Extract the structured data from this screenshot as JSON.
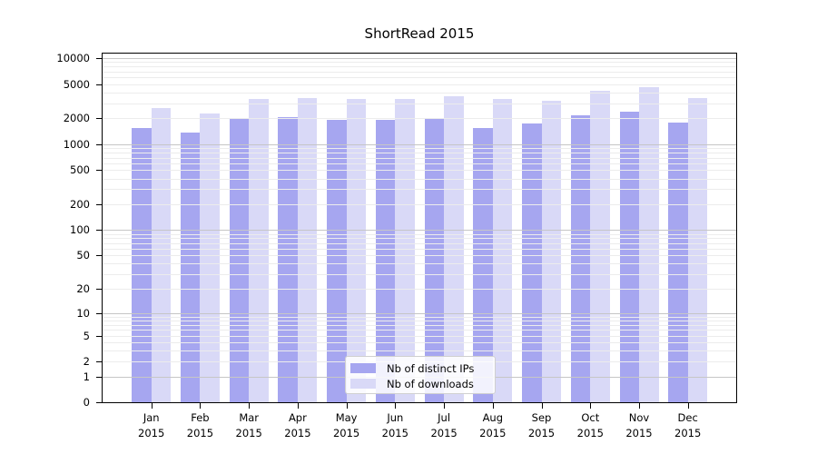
{
  "title": "ShortRead 2015",
  "chart_data": {
    "type": "bar",
    "title": "ShortRead 2015",
    "categories": [
      "Jan 2015",
      "Feb 2015",
      "Mar 2015",
      "Apr 2015",
      "May 2015",
      "Jun 2015",
      "Jul 2015",
      "Aug 2015",
      "Sep 2015",
      "Oct 2015",
      "Nov 2015",
      "Dec 2015"
    ],
    "series": [
      {
        "name": "Nb of distinct IPs",
        "color": "#a6a6f0",
        "values": [
          1560,
          1380,
          2040,
          2060,
          1920,
          1900,
          1970,
          1550,
          1740,
          2190,
          2370,
          1790
        ]
      },
      {
        "name": "Nb of downloads",
        "color": "#d9d9f7",
        "values": [
          2630,
          2260,
          3340,
          3420,
          3390,
          3370,
          3610,
          3390,
          3230,
          4210,
          4600,
          3470
        ]
      }
    ],
    "yscale": "log10(1+y)",
    "ylim": [
      0,
      10000
    ],
    "y_ticks": [
      0,
      1,
      2,
      5,
      10,
      20,
      50,
      100,
      200,
      500,
      1000,
      2000,
      5000,
      10000
    ],
    "y_tick_labels": [
      "0",
      "1",
      "2",
      "5",
      "10",
      "20",
      "50",
      "100",
      "200",
      "500",
      "1000",
      "2000",
      "5000",
      "10000"
    ],
    "grid": true,
    "legend_position": "lower center"
  },
  "colors": {
    "bar_ips": "#a6a6f0",
    "bar_downloads": "#d9d9f7",
    "grid_decade": "#c6c6c6",
    "grid_minor": "#ececec",
    "axis": "#000000"
  }
}
